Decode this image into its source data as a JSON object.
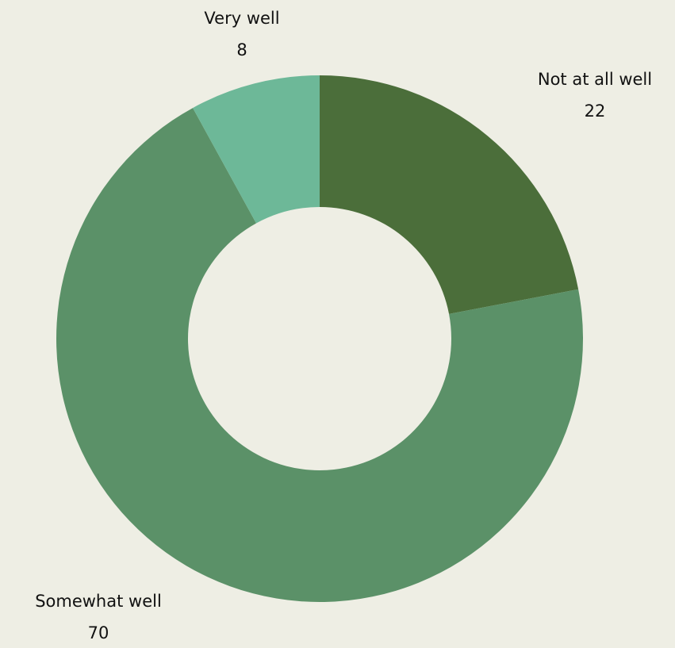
{
  "background_color": "#eeeee4",
  "chart_data": {
    "type": "pie",
    "variant": "donut",
    "title": "",
    "legend": "none",
    "slices": [
      {
        "label": "Not at all well",
        "value": 22,
        "value_label": "22",
        "color": "#4b6e3a"
      },
      {
        "label": "Somewhat well",
        "value": 70,
        "value_label": "70",
        "color": "#5b9168"
      },
      {
        "label": "Very well",
        "value": 8,
        "value_label": "8",
        "color": "#6db898"
      }
    ]
  }
}
